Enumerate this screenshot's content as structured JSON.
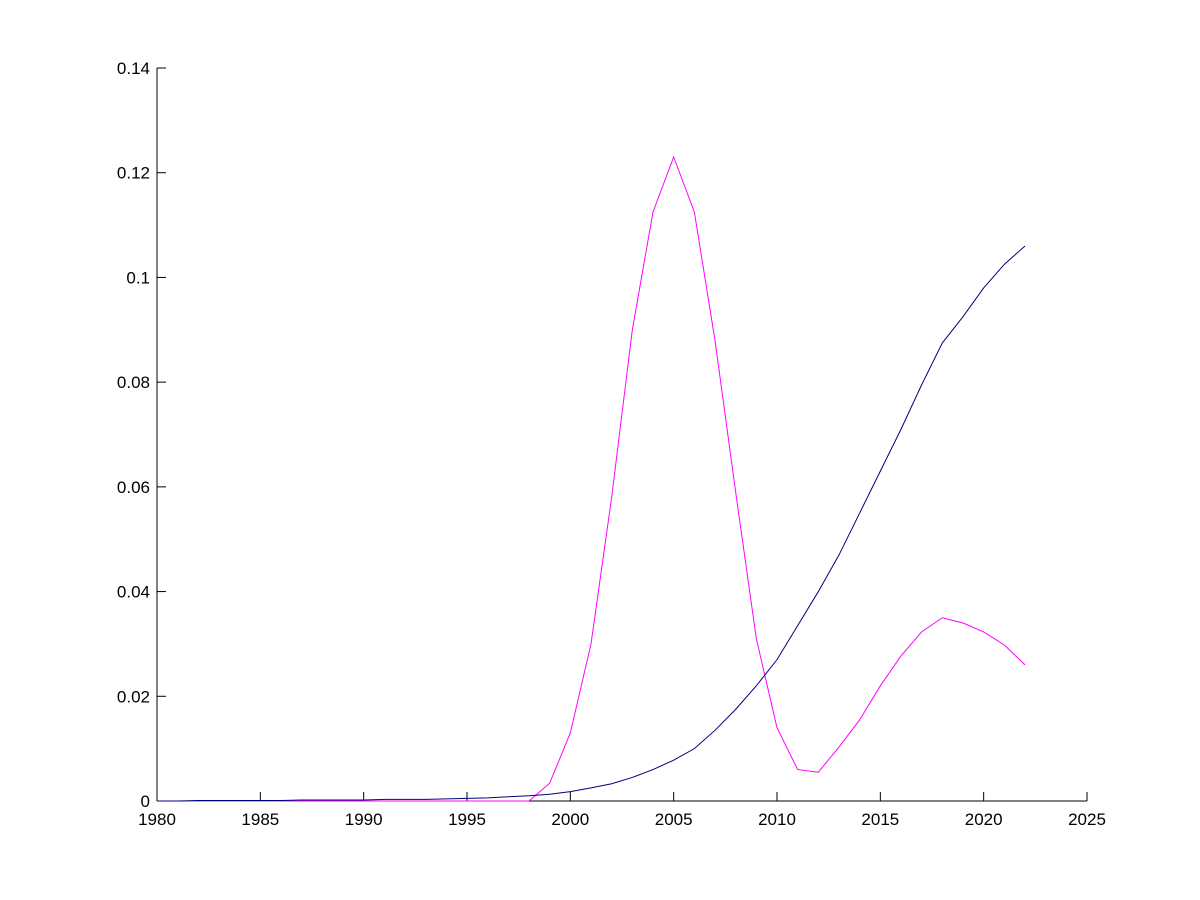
{
  "chart_data": {
    "type": "line",
    "x": [
      1980,
      1981,
      1982,
      1983,
      1984,
      1985,
      1986,
      1987,
      1988,
      1989,
      1990,
      1991,
      1992,
      1993,
      1994,
      1995,
      1996,
      1997,
      1998,
      1999,
      2000,
      2001,
      2002,
      2003,
      2004,
      2005,
      2006,
      2007,
      2008,
      2009,
      2010,
      2011,
      2012,
      2013,
      2014,
      2015,
      2016,
      2017,
      2018,
      2019,
      2020,
      2021,
      2022
    ],
    "series": [
      {
        "color": "#ff00ff",
        "values": [
          0,
          0,
          0,
          0,
          0,
          0,
          0,
          0,
          0,
          0,
          0,
          0,
          0,
          0,
          0,
          0,
          0,
          0,
          0,
          0.0034,
          0.013,
          0.03,
          0.058,
          0.09,
          0.1125,
          0.123,
          0.1125,
          0.088,
          0.059,
          0.031,
          0.014,
          0.006,
          0.0055,
          0.0103,
          0.0155,
          0.022,
          0.0277,
          0.0323,
          0.035,
          0.034,
          0.0323,
          0.0298,
          0.026
        ]
      },
      {
        "color": "#000080",
        "values": [
          0,
          0,
          0.0001,
          0.0001,
          0.0001,
          0.0001,
          0.0001,
          0.0002,
          0.0002,
          0.0002,
          0.0002,
          0.0003,
          0.0003,
          0.0003,
          0.0004,
          0.0005,
          0.0006,
          0.0008,
          0.001,
          0.0013,
          0.0018,
          0.0025,
          0.0033,
          0.0045,
          0.006,
          0.0078,
          0.01,
          0.0135,
          0.0175,
          0.022,
          0.027,
          0.0335,
          0.04,
          0.047,
          0.055,
          0.063,
          0.071,
          0.0795,
          0.0875,
          0.0925,
          0.098,
          0.1025,
          0.106
        ]
      }
    ],
    "xlim": [
      1980,
      2025
    ],
    "xticks": [
      1980,
      1985,
      1990,
      1995,
      2000,
      2005,
      2010,
      2015,
      2020,
      2025
    ],
    "ylim": [
      0,
      0.14
    ],
    "yticks": [
      0,
      0.02,
      0.04,
      0.06,
      0.08,
      0.1,
      0.12,
      0.14
    ]
  }
}
